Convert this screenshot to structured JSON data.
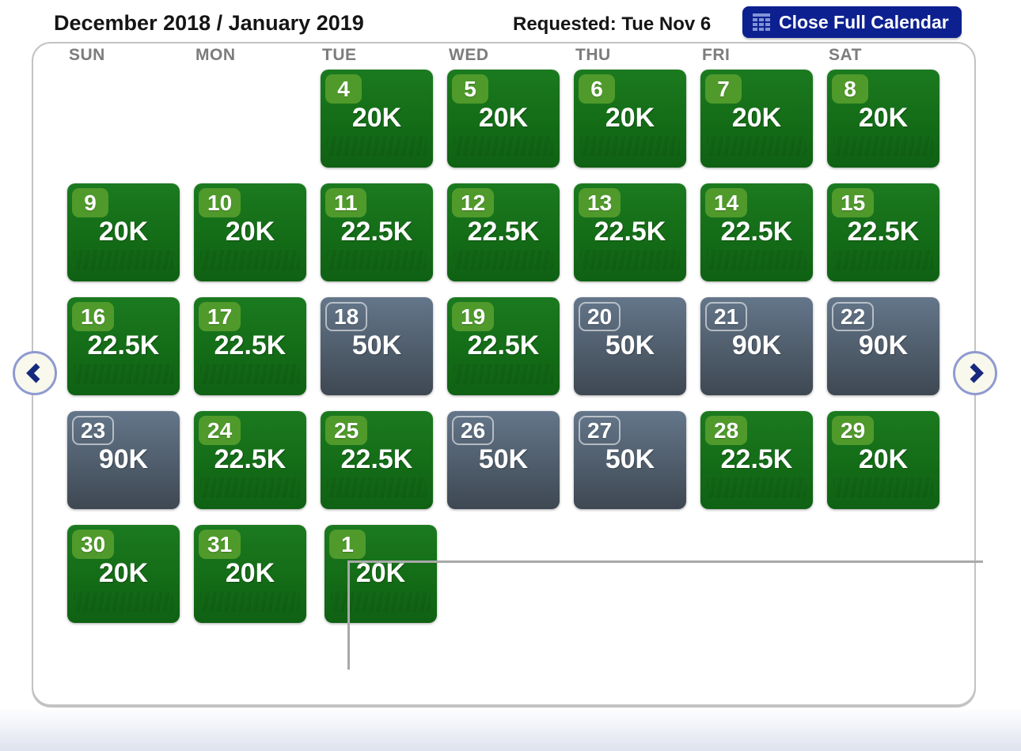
{
  "header": {
    "title": "December 2018 / January 2019",
    "requested_label": "Requested: Tue Nov 6",
    "close_button": {
      "label": "Close Full Calendar",
      "icon": "calendar-grid-icon"
    }
  },
  "calendar": {
    "day_headers": [
      "SUN",
      "MON",
      "TUE",
      "WED",
      "THU",
      "FRI",
      "SAT"
    ],
    "nav": {
      "prev_icon": "chevron-left",
      "next_icon": "chevron-right"
    },
    "weeks": [
      [
        null,
        null,
        {
          "day": "4",
          "price": "20K",
          "available": true,
          "month": "december"
        },
        {
          "day": "5",
          "price": "20K",
          "available": true,
          "month": "december"
        },
        {
          "day": "6",
          "price": "20K",
          "available": true,
          "month": "december"
        },
        {
          "day": "7",
          "price": "20K",
          "available": true,
          "month": "december"
        },
        {
          "day": "8",
          "price": "20K",
          "available": true,
          "month": "december"
        }
      ],
      [
        {
          "day": "9",
          "price": "20K",
          "available": true,
          "month": "december"
        },
        {
          "day": "10",
          "price": "20K",
          "available": true,
          "month": "december"
        },
        {
          "day": "11",
          "price": "22.5K",
          "available": true,
          "month": "december"
        },
        {
          "day": "12",
          "price": "22.5K",
          "available": true,
          "month": "december"
        },
        {
          "day": "13",
          "price": "22.5K",
          "available": true,
          "month": "december"
        },
        {
          "day": "14",
          "price": "22.5K",
          "available": true,
          "month": "december"
        },
        {
          "day": "15",
          "price": "22.5K",
          "available": true,
          "month": "december"
        }
      ],
      [
        {
          "day": "16",
          "price": "22.5K",
          "available": true,
          "month": "december"
        },
        {
          "day": "17",
          "price": "22.5K",
          "available": true,
          "month": "december"
        },
        {
          "day": "18",
          "price": "50K",
          "available": false,
          "month": "december"
        },
        {
          "day": "19",
          "price": "22.5K",
          "available": true,
          "month": "december"
        },
        {
          "day": "20",
          "price": "50K",
          "available": false,
          "month": "december"
        },
        {
          "day": "21",
          "price": "90K",
          "available": false,
          "month": "december"
        },
        {
          "day": "22",
          "price": "90K",
          "available": false,
          "month": "december"
        }
      ],
      [
        {
          "day": "23",
          "price": "90K",
          "available": false,
          "month": "december"
        },
        {
          "day": "24",
          "price": "22.5K",
          "available": true,
          "month": "december"
        },
        {
          "day": "25",
          "price": "22.5K",
          "available": true,
          "month": "december"
        },
        {
          "day": "26",
          "price": "50K",
          "available": false,
          "month": "december"
        },
        {
          "day": "27",
          "price": "50K",
          "available": false,
          "month": "december"
        },
        {
          "day": "28",
          "price": "22.5K",
          "available": true,
          "month": "december"
        },
        {
          "day": "29",
          "price": "20K",
          "available": true,
          "month": "december"
        }
      ],
      [
        {
          "day": "30",
          "price": "20K",
          "available": true,
          "month": "december"
        },
        {
          "day": "31",
          "price": "20K",
          "available": true,
          "month": "december"
        },
        {
          "day": "1",
          "price": "20K",
          "available": true,
          "month": "january"
        },
        null,
        null,
        null,
        null
      ]
    ]
  },
  "colors": {
    "button_bg": "#0d2090",
    "button_icon": "#8193d6",
    "available_tile": "#156f18",
    "available_badge": "#4f9a2b",
    "unavailable_tile_top": "#64768a",
    "unavailable_tile_bottom": "#3e4853",
    "day_header_text": "#7c7c7c",
    "nav_ring": "#8f9ad0",
    "nav_chevron": "#16297e",
    "panel_border": "#c3c3c3",
    "january_divider": "#a9a9a9"
  }
}
